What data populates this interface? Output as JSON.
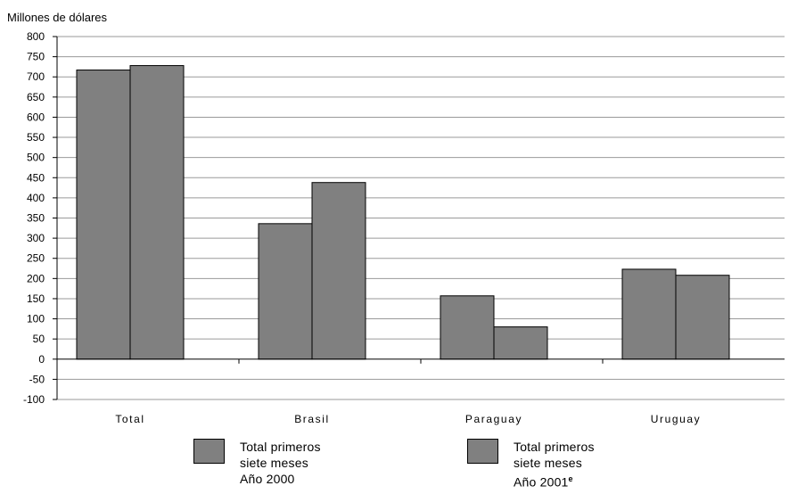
{
  "chart_data": {
    "type": "bar",
    "ylabel": "Millones de dólares",
    "ylim": [
      -100,
      800
    ],
    "ytick_step": 50,
    "grid": true,
    "bar_color": "#808080",
    "categories": [
      "Total",
      "Brasil",
      "Paraguay",
      "Uruguay"
    ],
    "series": [
      {
        "name": "Total primeros siete meses Año 2000",
        "values": [
          717,
          336,
          157,
          223
        ]
      },
      {
        "name": "Total primeros siete meses Año 2001e",
        "values": [
          728,
          438,
          80,
          208
        ]
      }
    ]
  },
  "legend": [
    {
      "line1": "Total primeros",
      "line2": "siete  meses",
      "line3": "Año 2000",
      "sup": ""
    },
    {
      "line1": "Total primeros",
      "line2": "siete  meses",
      "line3": "Año 2001",
      "sup": "e"
    }
  ]
}
